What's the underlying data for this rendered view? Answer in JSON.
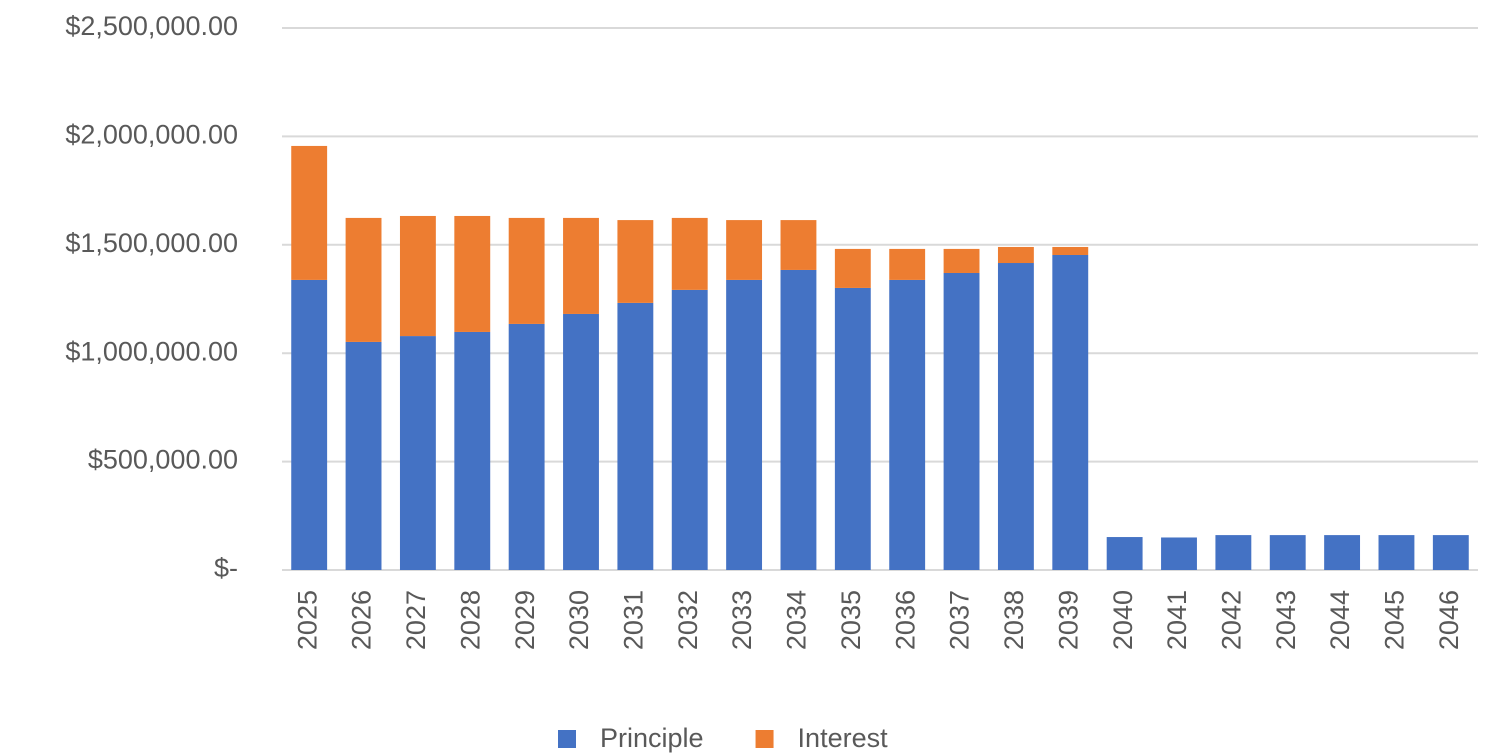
{
  "chart_data": {
    "type": "stacked_bar",
    "categories": [
      "2025",
      "2026",
      "2027",
      "2028",
      "2029",
      "2030",
      "2031",
      "2032",
      "2033",
      "2034",
      "2035",
      "2036",
      "2037",
      "2038",
      "2039",
      "2040",
      "2041",
      "2042",
      "2043",
      "2044",
      "2045",
      "2046"
    ],
    "series": [
      {
        "name": "Principle",
        "color": "#4472c4",
        "values": [
          1338000,
          1052000,
          1079000,
          1098000,
          1135000,
          1181000,
          1232000,
          1292000,
          1338000,
          1384000,
          1301000,
          1338000,
          1370000,
          1416000,
          1453000,
          152000,
          150000,
          161000,
          161000,
          161000,
          161000,
          161000
        ]
      },
      {
        "name": "Interest",
        "color": "#ed7d31",
        "values": [
          618000,
          572000,
          554000,
          535000,
          489000,
          443000,
          382000,
          332000,
          276000,
          230000,
          180000,
          143000,
          111000,
          74000,
          37000,
          0,
          0,
          0,
          0,
          0,
          0,
          0
        ]
      }
    ],
    "ylim": [
      0,
      2500000
    ],
    "yticks": [
      {
        "value": 0,
        "label": "$-"
      },
      {
        "value": 500000,
        "label": "$500,000.00"
      },
      {
        "value": 1000000,
        "label": "$1,000,000.00"
      },
      {
        "value": 1500000,
        "label": "$1,500,000.00"
      },
      {
        "value": 2000000,
        "label": "$2,000,000.00"
      },
      {
        "value": 2500000,
        "label": "$2,500,000.00"
      }
    ],
    "grid": true,
    "legend": "bottom"
  }
}
